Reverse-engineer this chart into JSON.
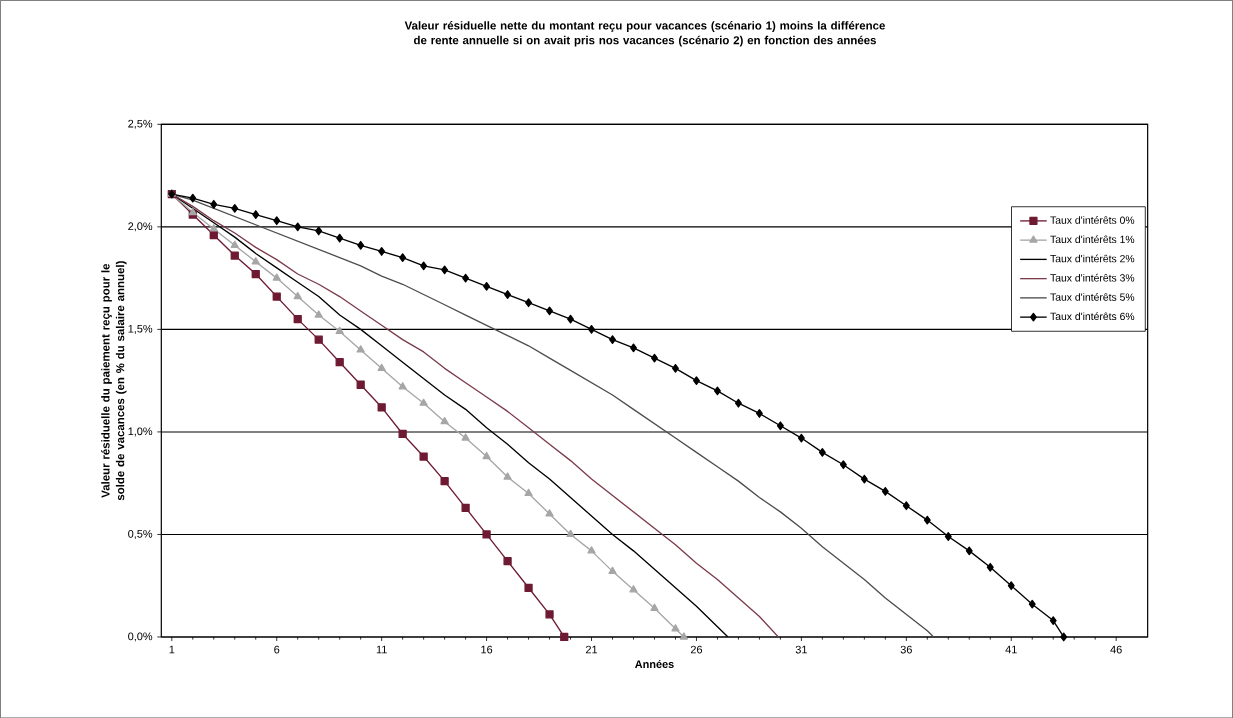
{
  "chart_data": {
    "type": "line",
    "title": "Valeur résiduelle nette du montant reçu pour vacances (scénario 1) moins la différence de rente annuelle si on avait pris nos vacances (scénario 2) en fonction des années",
    "xlabel": "Années",
    "ylabel": "Valeur résiduelle du paiement reçu pour le solde de vacances  (en % du salaire annuel)",
    "xlim": [
      0.5,
      47.5
    ],
    "xticks": [
      1,
      6,
      11,
      16,
      21,
      26,
      31,
      36,
      41,
      46
    ],
    "ylim": [
      0,
      2.5
    ],
    "yticks": [
      {
        "value": 0,
        "label": "0,0%"
      },
      {
        "value": 0.5,
        "label": "0,5%"
      },
      {
        "value": 1,
        "label": "1,0%"
      },
      {
        "value": 1.5,
        "label": "1,5%"
      },
      {
        "value": 2,
        "label": "2,0%"
      },
      {
        "value": 2.5,
        "label": "2,5%"
      }
    ],
    "grid": "y",
    "legend": "top right",
    "series": [
      {
        "name": "Taux d'intérêts 0%",
        "color": "#6e1a33",
        "marker": "square",
        "x": [
          1,
          2,
          3,
          4,
          5,
          6,
          7,
          8,
          9,
          10,
          11,
          12,
          13,
          14,
          15,
          16,
          17,
          18,
          19,
          19.7
        ],
        "values": [
          2.16,
          2.06,
          1.96,
          1.86,
          1.77,
          1.66,
          1.55,
          1.45,
          1.34,
          1.23,
          1.12,
          0.99,
          0.88,
          0.76,
          0.63,
          0.5,
          0.37,
          0.24,
          0.11,
          0
        ]
      },
      {
        "name": "Taux d'intérêts 1%",
        "color": "#a6a6a6",
        "marker": "triangle",
        "x": [
          1,
          2,
          3,
          4,
          5,
          6,
          7,
          8,
          9,
          10,
          11,
          12,
          13,
          14,
          15,
          16,
          17,
          18,
          19,
          20,
          21,
          22,
          23,
          24,
          25,
          25.4
        ],
        "values": [
          2.16,
          2.07,
          1.99,
          1.91,
          1.83,
          1.75,
          1.66,
          1.57,
          1.49,
          1.4,
          1.31,
          1.22,
          1.14,
          1.05,
          0.97,
          0.88,
          0.78,
          0.7,
          0.6,
          0.5,
          0.42,
          0.32,
          0.23,
          0.14,
          0.04,
          0
        ]
      },
      {
        "name": "Taux d'intérêts 2%",
        "color": "#000000",
        "marker": "none",
        "x": [
          1,
          2,
          3,
          4,
          5,
          6,
          7,
          8,
          9,
          10,
          11,
          12,
          13,
          14,
          15,
          16,
          17,
          18,
          19,
          20,
          21,
          22,
          23,
          24,
          25,
          26,
          27,
          27.5
        ],
        "values": [
          2.16,
          2.09,
          2.02,
          1.95,
          1.87,
          1.8,
          1.73,
          1.66,
          1.57,
          1.5,
          1.42,
          1.34,
          1.26,
          1.18,
          1.11,
          1.02,
          0.94,
          0.85,
          0.77,
          0.68,
          0.59,
          0.5,
          0.42,
          0.33,
          0.24,
          0.15,
          0.05,
          0
        ]
      },
      {
        "name": "Taux d'intérêts 3%",
        "color": "#7b3b4b",
        "marker": "none",
        "x": [
          1,
          2,
          3,
          4,
          5,
          6,
          7,
          8,
          9,
          10,
          11,
          12,
          13,
          14,
          15,
          16,
          17,
          18,
          19,
          20,
          21,
          22,
          23,
          24,
          25,
          26,
          27,
          28,
          29,
          29.9
        ],
        "values": [
          2.16,
          2.1,
          2.03,
          1.97,
          1.9,
          1.84,
          1.77,
          1.72,
          1.66,
          1.59,
          1.52,
          1.45,
          1.39,
          1.31,
          1.24,
          1.17,
          1.1,
          1.02,
          0.94,
          0.86,
          0.77,
          0.69,
          0.61,
          0.53,
          0.45,
          0.36,
          0.28,
          0.19,
          0.1,
          0
        ]
      },
      {
        "name": "Taux d'intérêts 5%",
        "color": "#4d4d4d",
        "marker": "none",
        "x": [
          1,
          2,
          3,
          4,
          5,
          6,
          7,
          8,
          9,
          10,
          11,
          12,
          13,
          14,
          15,
          16,
          17,
          18,
          19,
          20,
          21,
          22,
          23,
          24,
          25,
          26,
          27,
          28,
          29,
          30,
          31,
          32,
          33,
          34,
          35,
          36,
          37,
          37.3
        ],
        "values": [
          2.16,
          2.13,
          2.09,
          2.05,
          2.01,
          1.97,
          1.93,
          1.89,
          1.85,
          1.81,
          1.76,
          1.72,
          1.67,
          1.62,
          1.57,
          1.52,
          1.47,
          1.42,
          1.36,
          1.3,
          1.24,
          1.18,
          1.11,
          1.04,
          0.97,
          0.9,
          0.83,
          0.76,
          0.68,
          0.61,
          0.53,
          0.44,
          0.36,
          0.28,
          0.19,
          0.11,
          0.03,
          0
        ]
      },
      {
        "name": "Taux d'intérêts 6%",
        "color": "#000000",
        "marker": "diamond",
        "x": [
          1,
          2,
          3,
          4,
          5,
          6,
          7,
          8,
          9,
          10,
          11,
          12,
          13,
          14,
          15,
          16,
          17,
          18,
          19,
          20,
          21,
          22,
          23,
          24,
          25,
          26,
          27,
          28,
          29,
          30,
          31,
          32,
          33,
          34,
          35,
          36,
          37,
          38,
          39,
          40,
          41,
          42,
          43,
          43.5
        ],
        "values": [
          2.16,
          2.14,
          2.11,
          2.09,
          2.06,
          2.03,
          2.0,
          1.98,
          1.945,
          1.91,
          1.88,
          1.85,
          1.81,
          1.79,
          1.75,
          1.71,
          1.67,
          1.63,
          1.59,
          1.55,
          1.5,
          1.45,
          1.41,
          1.36,
          1.31,
          1.25,
          1.2,
          1.14,
          1.09,
          1.03,
          0.97,
          0.9,
          0.84,
          0.77,
          0.71,
          0.64,
          0.57,
          0.49,
          0.42,
          0.34,
          0.25,
          0.16,
          0.08,
          0
        ]
      }
    ]
  }
}
